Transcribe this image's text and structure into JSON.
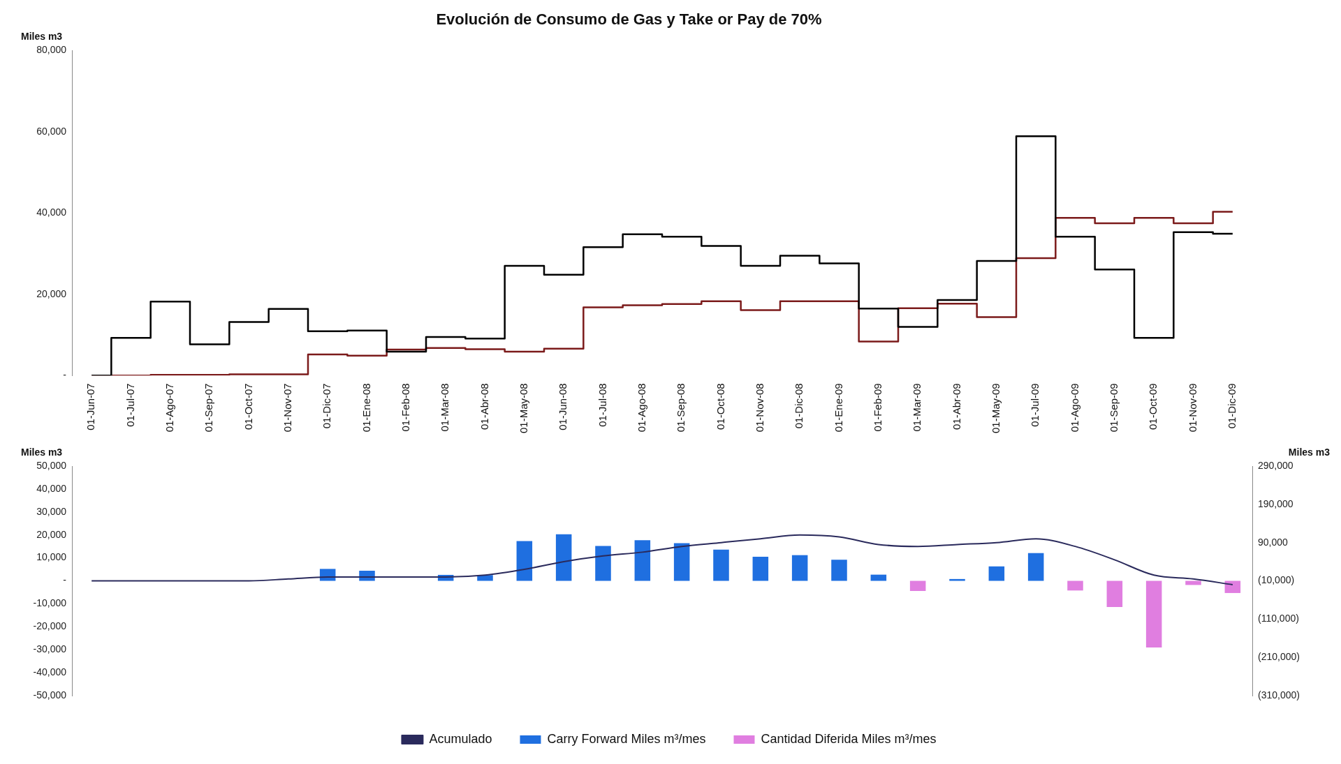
{
  "chart_data": [
    {
      "type": "step",
      "title": "Evolución de Consumo de Gas y Take or Pay de 70%",
      "ylabel": "Miles m3",
      "categories": [
        "01-Jun-07",
        "01-Jul-07",
        "01-Ago-07",
        "01-Sep-07",
        "01-Oct-07",
        "01-Nov-07",
        "01-Dic-07",
        "01-Ene-08",
        "01-Feb-08",
        "01-Mar-08",
        "01-Abr-08",
        "01-May-08",
        "01-Jun-08",
        "01-Jul-08",
        "01-Ago-08",
        "01-Sep-08",
        "01-Oct-08",
        "01-Nov-08",
        "01-Dic-08",
        "01-Ene-09",
        "01-Feb-09",
        "01-Mar-09",
        "01-Abr-09",
        "01-May-09",
        "01-Jul-09",
        "01-Ago-09",
        "01-Sep-09",
        "01-Oct-09",
        "01-Nov-09",
        "01-Dic-09"
      ],
      "series": [
        {
          "color": "#000000",
          "values": [
            0,
            9300,
            18200,
            7700,
            13200,
            16400,
            10900,
            11100,
            5900,
            9500,
            9100,
            27000,
            24800,
            31600,
            34800,
            34200,
            31900,
            27000,
            29500,
            27600,
            16500,
            12000,
            18600,
            28200,
            58900,
            34200,
            26100,
            9300,
            35300,
            34900
          ]
        },
        {
          "color": "#7b1a1a",
          "values": [
            0,
            0,
            200,
            200,
            300,
            300,
            5200,
            4900,
            6400,
            6800,
            6500,
            5900,
            6600,
            16800,
            17300,
            17600,
            18300,
            16100,
            18300,
            18300,
            8400,
            16600,
            17700,
            14400,
            28900,
            38800,
            37500,
            38800,
            37500,
            40300
          ]
        }
      ],
      "ylim": [
        0,
        80000
      ],
      "yticks": [
        {
          "value": 0,
          "label": "-"
        },
        {
          "value": 20000,
          "label": "20,000"
        },
        {
          "value": 40000,
          "label": "40,000"
        },
        {
          "value": 60000,
          "label": "60,000"
        },
        {
          "value": 80000,
          "label": "80,000"
        }
      ]
    },
    {
      "type": "bar",
      "ylabel": "Miles m3",
      "y2label": "Miles m3",
      "stacked": true,
      "legend": "bottom",
      "categories": [
        null,
        null,
        null,
        null,
        null,
        null,
        null,
        null,
        null,
        null,
        null,
        null,
        null,
        null,
        null,
        null,
        null,
        null,
        null,
        null,
        null,
        null,
        null,
        null,
        null,
        null,
        null,
        null,
        null,
        null
      ],
      "series": [
        {
          "name": "Carry Forward Miles m³/mes",
          "color": "#1f6fe0",
          "values": [
            null,
            null,
            null,
            null,
            null,
            null,
            5200,
            4400,
            null,
            2600,
            2500,
            17300,
            20300,
            15200,
            17700,
            16400,
            13600,
            10500,
            11200,
            9200,
            2700,
            null,
            800,
            6300,
            12100,
            null,
            null,
            null,
            null,
            null
          ]
        },
        {
          "name": "Cantidad Diferida Miles m³/mes",
          "color": "#e07ee0",
          "values": [
            null,
            null,
            null,
            null,
            null,
            null,
            null,
            null,
            null,
            null,
            null,
            null,
            null,
            null,
            null,
            null,
            null,
            null,
            null,
            null,
            null,
            -4400,
            null,
            null,
            null,
            -4200,
            -11400,
            -29000,
            -1800,
            -5300
          ]
        },
        {
          "name": "Acumulado",
          "type": "line",
          "axis": "y2",
          "color": "#2a2a5c",
          "values": [
            -10000,
            -10000,
            -10000,
            -10000,
            -10000,
            -5000,
            0,
            0,
            0,
            0,
            5000,
            20000,
            40000,
            55000,
            65000,
            80000,
            90000,
            100000,
            110000,
            105000,
            85000,
            80000,
            85000,
            90000,
            100000,
            80000,
            45000,
            5000,
            -5000,
            -20000
          ]
        }
      ],
      "ylim": [
        -50000,
        50000
      ],
      "yticks": [
        {
          "value": -50000,
          "label": "-50,000"
        },
        {
          "value": -40000,
          "label": "-40,000"
        },
        {
          "value": -30000,
          "label": "-30,000"
        },
        {
          "value": -20000,
          "label": "-20,000"
        },
        {
          "value": -10000,
          "label": "-10,000"
        },
        {
          "value": 0,
          "label": "-"
        },
        {
          "value": 10000,
          "label": "10,000"
        },
        {
          "value": 20000,
          "label": "20,000"
        },
        {
          "value": 30000,
          "label": "30,000"
        },
        {
          "value": 40000,
          "label": "40,000"
        },
        {
          "value": 50000,
          "label": "50,000"
        }
      ],
      "y2lim": [
        -310000,
        290000
      ],
      "y2ticks": [
        {
          "value": -310000,
          "label": "(310,000)"
        },
        {
          "value": -210000,
          "label": "(210,000)"
        },
        {
          "value": -110000,
          "label": "(110,000)"
        },
        {
          "value": -10000,
          "label": "(10,000)"
        },
        {
          "value": 90000,
          "label": "90,000"
        },
        {
          "value": 190000,
          "label": "190,000"
        },
        {
          "value": 290000,
          "label": "290,000"
        }
      ]
    }
  ]
}
